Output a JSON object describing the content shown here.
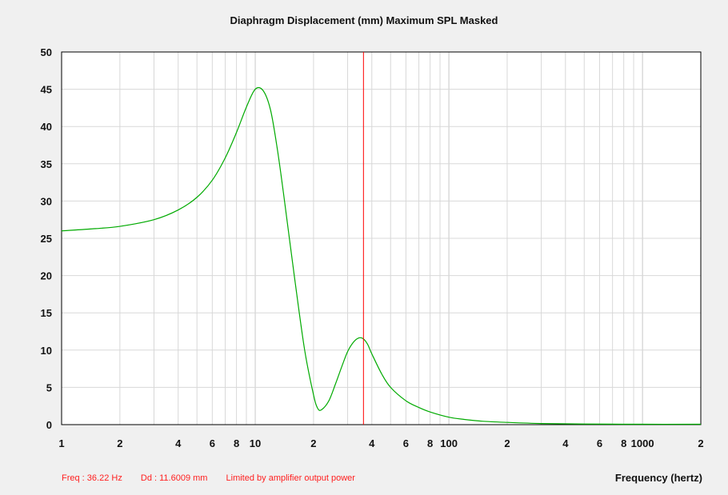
{
  "chart_data": {
    "type": "line",
    "title": "Diaphragm Displacement (mm)   Maximum SPL   Masked",
    "xlabel": "Frequency (hertz)",
    "ylabel": "",
    "x_scale": "log",
    "xlim": [
      1,
      2000
    ],
    "ylim": [
      0,
      50
    ],
    "grid": true,
    "y_ticks": [
      0,
      5,
      10,
      15,
      20,
      25,
      30,
      35,
      40,
      45,
      50
    ],
    "x_tick_labels": [
      {
        "x": 1,
        "label": "1"
      },
      {
        "x": 2,
        "label": "2"
      },
      {
        "x": 4,
        "label": "4"
      },
      {
        "x": 6,
        "label": "6"
      },
      {
        "x": 8,
        "label": "8"
      },
      {
        "x": 10,
        "label": "10"
      },
      {
        "x": 20,
        "label": "2"
      },
      {
        "x": 40,
        "label": "4"
      },
      {
        "x": 60,
        "label": "6"
      },
      {
        "x": 80,
        "label": "8"
      },
      {
        "x": 100,
        "label": "100"
      },
      {
        "x": 200,
        "label": "2"
      },
      {
        "x": 400,
        "label": "4"
      },
      {
        "x": 600,
        "label": "6"
      },
      {
        "x": 800,
        "label": "8"
      },
      {
        "x": 1000,
        "label": "1000"
      },
      {
        "x": 2000,
        "label": "2"
      }
    ],
    "series": [
      {
        "color": "#00aa00",
        "x": [
          1,
          1.5,
          2,
          3,
          4,
          5,
          6,
          7,
          8,
          9,
          10,
          11,
          12,
          13,
          14,
          16,
          18,
          20,
          21,
          22,
          24,
          26,
          28,
          30,
          32,
          34,
          36,
          38,
          40,
          45,
          50,
          60,
          70,
          80,
          100,
          120,
          150,
          200,
          300,
          500,
          1000,
          2000
        ],
        "y": [
          26.0,
          26.3,
          26.6,
          27.5,
          28.8,
          30.5,
          32.8,
          35.8,
          39.2,
          42.6,
          45.0,
          44.8,
          42.2,
          37.0,
          31.0,
          19.5,
          10.0,
          4.0,
          2.2,
          2.0,
          3.2,
          5.5,
          7.8,
          9.8,
          11.0,
          11.6,
          11.55,
          10.8,
          9.5,
          6.8,
          5.0,
          3.2,
          2.3,
          1.7,
          1.0,
          0.7,
          0.45,
          0.3,
          0.15,
          0.08,
          0.05,
          0.05
        ]
      }
    ],
    "cursor": {
      "x": 36.22,
      "color": "#ff0000"
    }
  },
  "status": {
    "freq": "Freq : 36.22 Hz",
    "dd": "Dd : 11.6009 mm",
    "message": "Limited by amplifier output power"
  },
  "colors": {
    "background": "#f0f0f0",
    "plot_background": "#ffffff",
    "grid": "#d8d8d8",
    "status_text": "#ff2020"
  }
}
